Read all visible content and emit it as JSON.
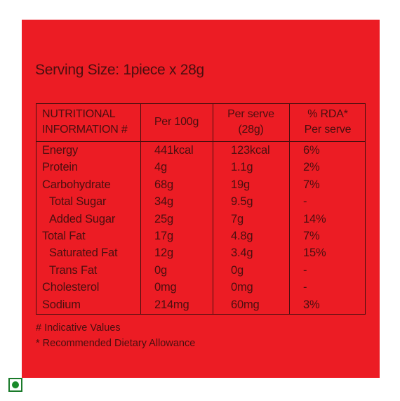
{
  "header": {
    "title": "Serving Size: 1piece x 28g"
  },
  "table": {
    "headers": [
      [
        "NUTRITIONAL",
        "INFORMATION #"
      ],
      [
        "Per 100g"
      ],
      [
        "Per serve",
        "(28g)"
      ],
      [
        "% RDA*",
        "Per serve"
      ]
    ],
    "rows": [
      [
        "Energy",
        "441kcal",
        "123kcal",
        "6%"
      ],
      [
        "Protein",
        "4g",
        "1.1g",
        "2%"
      ],
      [
        "Carbohydrate",
        "68g",
        "19g",
        "7%"
      ],
      [
        "Total Sugar",
        "34g",
        "9.5g",
        "-"
      ],
      [
        "Added Sugar",
        "25g",
        "7g",
        "14%"
      ],
      [
        "Total Fat",
        "17g",
        "4.8g",
        "7%"
      ],
      [
        "Saturated Fat",
        "12g",
        "3.4g",
        "15%"
      ],
      [
        "Trans Fat",
        "0g",
        "0g",
        "-"
      ],
      [
        "Cholesterol",
        "0mg",
        "0mg",
        "-"
      ],
      [
        "Sodium",
        "214mg",
        "60mg",
        "3%"
      ]
    ]
  },
  "footnotes": [
    "# Indicative Values",
    "* Recommended Dietary Allowance"
  ]
}
